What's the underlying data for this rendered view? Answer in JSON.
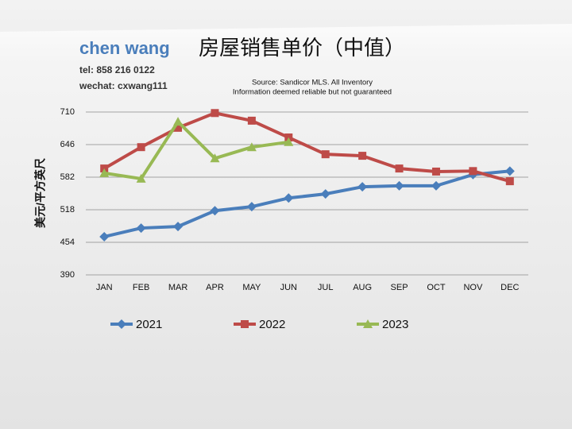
{
  "header": {
    "name": "chen wang",
    "tel": "tel: 858 216 0122",
    "wechat": "wechat: cxwang111"
  },
  "chart_data": {
    "type": "line",
    "title": "房屋销售单价（中值）",
    "source": [
      "Source: Sandicor MLS. All Inventory",
      "Information deemed reliable but not guaranteed"
    ],
    "ylabel": "美元/平方英尺",
    "categories": [
      "JAN",
      "FEB",
      "MAR",
      "APR",
      "MAY",
      "JUN",
      "JUL",
      "AUG",
      "SEP",
      "OCT",
      "NOV",
      "DEC"
    ],
    "series": [
      {
        "name": "2021",
        "color": "#4a7ebb",
        "marker": "diamond",
        "values": [
          465,
          482,
          485,
          516,
          524,
          541,
          549,
          563,
          565,
          565,
          587,
          594
        ]
      },
      {
        "name": "2022",
        "color": "#be4b48",
        "marker": "square",
        "values": [
          599,
          641,
          679,
          708,
          693,
          660,
          627,
          624,
          599,
          593,
          594,
          574
        ]
      },
      {
        "name": "2023",
        "color": "#98b954",
        "marker": "triangle",
        "values": [
          590,
          579,
          691,
          619,
          641,
          651,
          null,
          null,
          null,
          null,
          null,
          null
        ]
      }
    ],
    "ylim": [
      390,
      710
    ],
    "yticks": [
      390,
      454,
      518,
      582,
      646,
      710
    ],
    "grid": true,
    "legend": "bottom"
  }
}
